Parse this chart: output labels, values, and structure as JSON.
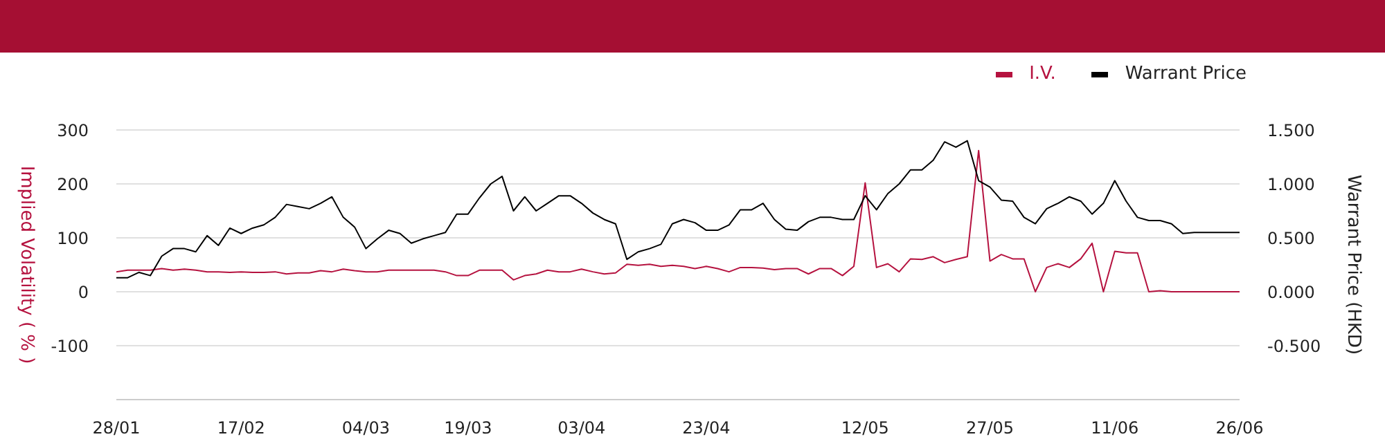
{
  "chart_data": {
    "type": "line",
    "categories": [
      "28/01",
      null,
      null,
      null,
      null,
      null,
      null,
      null,
      null,
      null,
      null,
      "17/02",
      null,
      null,
      null,
      null,
      null,
      null,
      null,
      null,
      null,
      null,
      "04/03",
      null,
      null,
      null,
      null,
      null,
      null,
      null,
      null,
      "19/03",
      null,
      null,
      null,
      null,
      null,
      null,
      null,
      null,
      null,
      "03/04",
      null,
      null,
      null,
      null,
      null,
      null,
      null,
      null,
      null,
      null,
      "23/04",
      null,
      null,
      null,
      null,
      null,
      null,
      null,
      null,
      null,
      null,
      null,
      null,
      null,
      "12/05",
      null,
      null,
      null,
      null,
      null,
      null,
      null,
      null,
      null,
      null,
      "27/05",
      null,
      null,
      null,
      null,
      null,
      null,
      null,
      null,
      null,
      null,
      "11/06",
      null,
      null,
      null,
      null,
      null,
      null,
      null,
      null,
      null,
      null,
      "26/06"
    ],
    "series": [
      {
        "name": "I.V.",
        "color": "#b5123f",
        "values": [
          37,
          40,
          40,
          40,
          43,
          40,
          42,
          40,
          37,
          37,
          36,
          37,
          36,
          36,
          37,
          33,
          35,
          35,
          39,
          37,
          42,
          39,
          37,
          37,
          40,
          40,
          40,
          40,
          40,
          37,
          30,
          30,
          40,
          40,
          40,
          22,
          30,
          33,
          40,
          37,
          37,
          42,
          37,
          33,
          35,
          51,
          49,
          51,
          47,
          49,
          47,
          43,
          47,
          43,
          37,
          45,
          45,
          44,
          41,
          43,
          43,
          33,
          43,
          43,
          30,
          47,
          202,
          45,
          52,
          37,
          61,
          60,
          65,
          54,
          60,
          65,
          262,
          57,
          69,
          61,
          61,
          0,
          45,
          52,
          45,
          61,
          90,
          0,
          75,
          72,
          72,
          0,
          2,
          0,
          0,
          0,
          0,
          0,
          0,
          0
        ]
      },
      {
        "name": "Warrant Price",
        "color": "#000000",
        "axis": "y2",
        "values": [
          0.13,
          0.13,
          0.18,
          0.15,
          0.33,
          0.4,
          0.4,
          0.37,
          0.52,
          0.43,
          0.59,
          0.54,
          0.59,
          0.62,
          0.69,
          0.81,
          0.79,
          0.77,
          0.82,
          0.88,
          0.69,
          0.6,
          0.4,
          0.49,
          0.57,
          0.54,
          0.45,
          0.49,
          0.52,
          0.55,
          0.72,
          0.72,
          0.87,
          1.0,
          1.07,
          0.75,
          0.88,
          0.75,
          0.82,
          0.89,
          0.89,
          0.82,
          0.73,
          0.67,
          0.63,
          0.3,
          0.37,
          0.4,
          0.44,
          0.63,
          0.67,
          0.64,
          0.57,
          0.57,
          0.62,
          0.76,
          0.76,
          0.82,
          0.67,
          0.58,
          0.57,
          0.65,
          0.69,
          0.69,
          0.67,
          0.67,
          0.89,
          0.76,
          0.91,
          1.0,
          1.13,
          1.13,
          1.22,
          1.39,
          1.34,
          1.4,
          1.03,
          0.97,
          0.85,
          0.84,
          0.69,
          0.63,
          0.77,
          0.82,
          0.88,
          0.84,
          0.72,
          0.82,
          1.03,
          0.84,
          0.69,
          0.66,
          0.66,
          0.63,
          0.54,
          0.55,
          0.55,
          0.55,
          0.55,
          0.55
        ]
      }
    ],
    "ylabel": "Implied Volatility ( % )",
    "y2label": "Warrant Price (HKD)",
    "ylim": [
      -200,
      300
    ],
    "yticks": [
      -100,
      0,
      100,
      200,
      300
    ],
    "y2lim": [
      -1,
      1.5
    ],
    "y2ticks": [
      {
        "value": -0.5,
        "label": "-0.500"
      },
      {
        "value": 0,
        "label": "0.000"
      },
      {
        "value": 0.5,
        "label": "0.500"
      },
      {
        "value": 1,
        "label": "1.000"
      },
      {
        "value": 1.5,
        "label": "1.500"
      }
    ],
    "grid": "y",
    "legend": "top right"
  }
}
